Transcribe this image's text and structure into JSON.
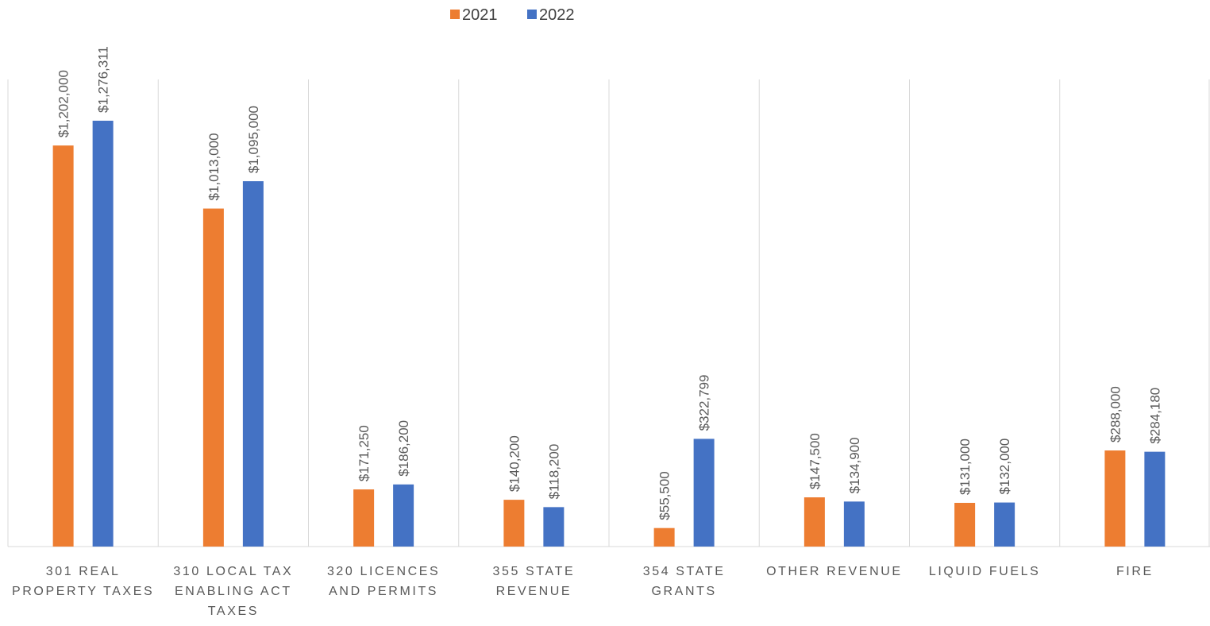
{
  "chart_data": {
    "type": "bar",
    "categories": [
      "301 REAL PROPERTY TAXES",
      "310 LOCAL TAX ENABLING ACT TAXES",
      "320 LICENCES AND PERMITS",
      "355 STATE REVENUE",
      "354 STATE GRANTS",
      "OTHER REVENUE",
      "LIQUID FUELS",
      "FIRE"
    ],
    "series": [
      {
        "name": "2021",
        "color": "#ed7d31",
        "values": [
          1202000,
          1013000,
          171250,
          140200,
          55500,
          147500,
          131000,
          288000
        ],
        "value_labels": [
          "$1,202,000",
          "$1,013,000",
          "$171,250",
          "$140,200",
          "$55,500",
          "$147,500",
          "$131,000",
          "$288,000"
        ]
      },
      {
        "name": "2022",
        "color": "#4472c4",
        "values": [
          1276311,
          1095000,
          186200,
          118200,
          322799,
          134900,
          132000,
          284180
        ],
        "value_labels": [
          "$1,276,311",
          "$1,095,000",
          "$186,200",
          "$118,200",
          "$322,799",
          "$134,900",
          "$132,000",
          "$284,180"
        ]
      }
    ],
    "ylim": [
      0,
      1400000
    ],
    "legend": "top",
    "grid": true
  }
}
